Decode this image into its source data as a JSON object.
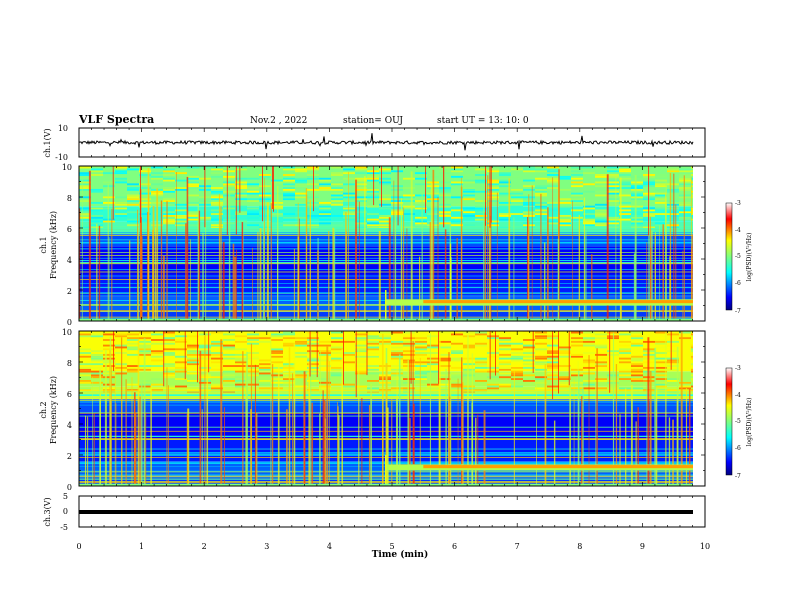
{
  "header": {
    "title": "VLF Spectra",
    "date": "Nov.2 , 2022",
    "station": "station= OUJ",
    "start": "start UT = 13: 10: 0"
  },
  "chart_data": [
    {
      "type": "line",
      "panel": "ch1-waveform",
      "ylabel": "ch.1(V)",
      "ylim": [
        -10,
        10
      ],
      "yticks": [
        "10",
        "-10"
      ],
      "xlim": [
        0,
        10
      ],
      "baseline": 0
    },
    {
      "type": "heatmap",
      "panel": "ch1-spectrogram",
      "ylabel_top": "ch.1",
      "ylabel": "Frequency (kHz)",
      "ylim": [
        0,
        10
      ],
      "yticks": [
        "0",
        "2",
        "4",
        "6",
        "8",
        "10"
      ],
      "xlim": [
        0,
        10
      ],
      "colorbar": {
        "label": "log(PSD)(V²/Hz)",
        "range": [
          -7,
          -3
        ],
        "ticks": [
          "-3",
          "-4",
          "-5",
          "-6",
          "-7"
        ]
      }
    },
    {
      "type": "heatmap",
      "panel": "ch2-spectrogram",
      "ylabel_top": "ch.2",
      "ylabel": "Frequency (kHz)",
      "ylim": [
        0,
        10
      ],
      "yticks": [
        "0",
        "2",
        "4",
        "6",
        "8",
        "10"
      ],
      "xlim": [
        0,
        10
      ],
      "colorbar": {
        "label": "log(PSD)(V²/Hz)",
        "range": [
          -7,
          -3
        ],
        "ticks": [
          "-3",
          "-4",
          "-5",
          "-6",
          "-7"
        ]
      }
    },
    {
      "type": "line",
      "panel": "ch3-waveform",
      "ylabel": "ch.3(V)",
      "ylim": [
        -5,
        5
      ],
      "yticks": [
        "5",
        "0",
        "-5"
      ],
      "xlim": [
        0,
        10
      ],
      "baseline": -2
    }
  ],
  "x_axis": {
    "label": "Time (min)",
    "ticks": [
      "0",
      "1",
      "2",
      "3",
      "4",
      "5",
      "6",
      "7",
      "8",
      "9",
      "10"
    ]
  },
  "colors": {
    "jet_low": "#00007f",
    "jet_mid": "#7fff7f",
    "jet_high": "#7f0000"
  }
}
